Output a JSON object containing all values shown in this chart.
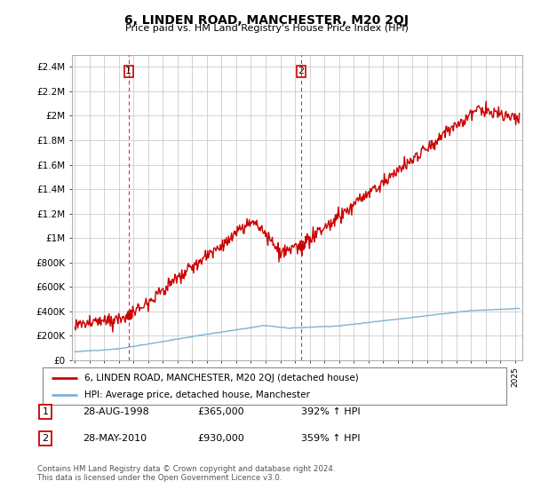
{
  "title": "6, LINDEN ROAD, MANCHESTER, M20 2QJ",
  "subtitle": "Price paid vs. HM Land Registry's House Price Index (HPI)",
  "ylabel_ticks": [
    "£0",
    "£200K",
    "£400K",
    "£600K",
    "£800K",
    "£1M",
    "£1.2M",
    "£1.4M",
    "£1.6M",
    "£1.8M",
    "£2M",
    "£2.2M",
    "£2.4M"
  ],
  "ytick_values": [
    0,
    200000,
    400000,
    600000,
    800000,
    1000000,
    1200000,
    1400000,
    1600000,
    1800000,
    2000000,
    2200000,
    2400000
  ],
  "ylim": [
    0,
    2500000
  ],
  "xlim_start": 1994.8,
  "xlim_end": 2025.5,
  "red_line_color": "#cc0000",
  "blue_line_color": "#7fb3d3",
  "marker_color": "#cc0000",
  "dashed_line_color": "#cc0000",
  "grid_color": "#cccccc",
  "bg_color": "#ffffff",
  "legend_label_red": "6, LINDEN ROAD, MANCHESTER, M20 2QJ (detached house)",
  "legend_label_blue": "HPI: Average price, detached house, Manchester",
  "annotation1_num": "1",
  "annotation1_date": "28-AUG-1998",
  "annotation1_price": "£365,000",
  "annotation1_hpi": "392% ↑ HPI",
  "annotation2_num": "2",
  "annotation2_date": "28-MAY-2010",
  "annotation2_price": "£930,000",
  "annotation2_hpi": "359% ↑ HPI",
  "footer": "Contains HM Land Registry data © Crown copyright and database right 2024.\nThis data is licensed under the Open Government Licence v3.0.",
  "point1_x": 1998.66,
  "point1_y": 365000,
  "point2_x": 2010.41,
  "point2_y": 930000
}
